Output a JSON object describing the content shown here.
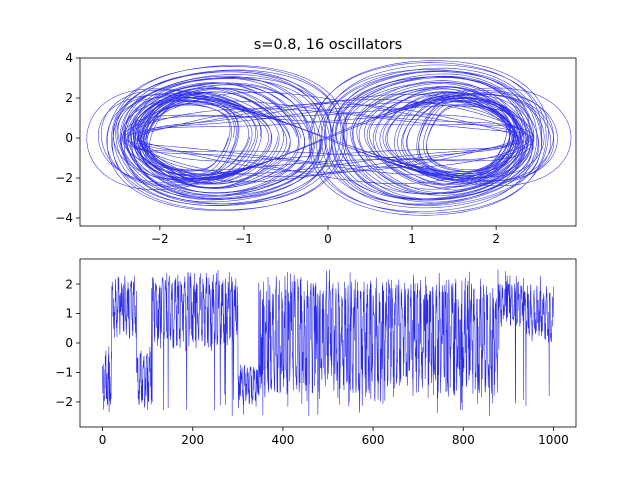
{
  "chart_data": [
    {
      "type": "line",
      "subtype": "phase-portrait",
      "title": "s=0.8, 16 oscillators",
      "xlim": [
        -2.95,
        2.95
      ],
      "ylim": [
        -4.4,
        4.0
      ],
      "xticks": [
        -2,
        -1,
        0,
        1,
        2
      ],
      "yticks": [
        -4,
        -2,
        0,
        2,
        4
      ],
      "xlabel": "",
      "ylabel": "",
      "grid": false,
      "color": "#2a2aee",
      "orbits": [
        {
          "cx": -1.65,
          "rx": 0.52,
          "ry": 1.9
        },
        {
          "cx": -1.55,
          "rx": 0.65,
          "ry": 2.1
        },
        {
          "cx": -1.45,
          "rx": 0.8,
          "ry": 2.3
        },
        {
          "cx": -1.35,
          "rx": 0.95,
          "ry": 2.5
        },
        {
          "cx": -1.3,
          "rx": 1.1,
          "ry": 2.7
        },
        {
          "cx": -1.25,
          "rx": 1.2,
          "ry": 3.0
        },
        {
          "cx": -1.2,
          "rx": 1.3,
          "ry": 3.3
        },
        {
          "cx": 1.65,
          "rx": 0.52,
          "ry": 1.9
        },
        {
          "cx": 1.55,
          "rx": 0.65,
          "ry": 2.1
        },
        {
          "cx": 1.45,
          "rx": 0.8,
          "ry": 2.3
        },
        {
          "cx": 1.35,
          "rx": 0.95,
          "ry": 2.5
        },
        {
          "cx": 1.3,
          "rx": 1.1,
          "ry": 2.8
        },
        {
          "cx": 1.25,
          "rx": 1.2,
          "ry": 3.1
        },
        {
          "cx": 1.2,
          "rx": 1.3,
          "ry": 3.5
        },
        {
          "cx": 0.0,
          "rx": 2.45,
          "ry": 2.2
        },
        {
          "cx": 0.0,
          "rx": 2.6,
          "ry": 2.5
        }
      ]
    },
    {
      "type": "line",
      "title": "",
      "xlim": [
        -50,
        1050
      ],
      "ylim": [
        -2.85,
        2.85
      ],
      "xticks": [
        0,
        200,
        400,
        600,
        800,
        1000
      ],
      "yticks": [
        -2,
        -1,
        0,
        1,
        2
      ],
      "xlabel": "",
      "ylabel": "",
      "grid": false,
      "color": "#2a2aee",
      "series_length": 1000,
      "segments": [
        {
          "x": [
            0,
            20
          ],
          "level": -1.2,
          "amp": 1.1
        },
        {
          "x": [
            20,
            75
          ],
          "level": 1.2,
          "amp": 1.1
        },
        {
          "x": [
            75,
            110
          ],
          "level": -1.2,
          "amp": 1.1
        },
        {
          "x": [
            110,
            300
          ],
          "level": 1.1,
          "amp": 1.4
        },
        {
          "x": [
            300,
            350
          ],
          "level": -1.4,
          "amp": 0.7
        },
        {
          "x": [
            350,
            880
          ],
          "level": 0.2,
          "amp": 2.1
        },
        {
          "x": [
            880,
            940
          ],
          "level": 1.3,
          "amp": 0.8
        },
        {
          "x": [
            940,
            1000
          ],
          "level": 1.0,
          "amp": 1.0
        }
      ]
    }
  ]
}
